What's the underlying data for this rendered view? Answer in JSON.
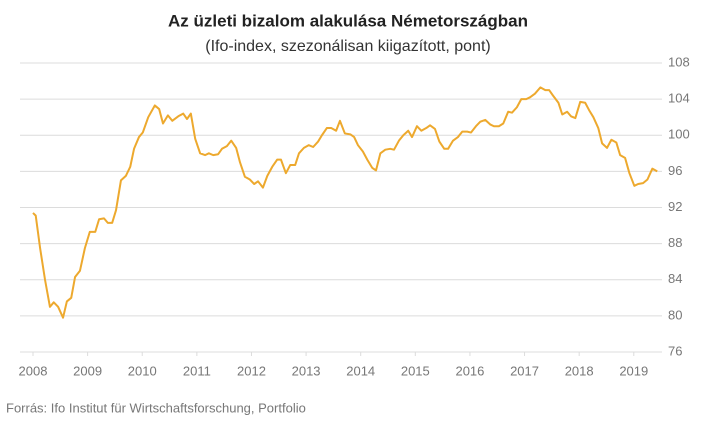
{
  "chart_data": {
    "type": "line",
    "title": "Az üzleti bizalom alakulása Németországban",
    "subtitle": "(Ifo-index, szezonálisan kiigazított, pont)",
    "source": "Forrás: Ifo Institut für Wirtschaftsforschung, Portfolio",
    "color": "#eda92e",
    "grid": true,
    "xlim": [
      2008,
      2019.48
    ],
    "xticks": [
      2008,
      2009,
      2010,
      2011,
      2012,
      2013,
      2014,
      2015,
      2016,
      2017,
      2018,
      2019
    ],
    "ylim": [
      76,
      108
    ],
    "yticks": [
      76,
      80,
      84,
      88,
      92,
      96,
      100,
      104,
      108
    ],
    "x": [
      2008.0,
      2008.05,
      2008.13,
      2008.22,
      2008.31,
      2008.38,
      2008.46,
      2008.55,
      2008.62,
      2008.7,
      2008.77,
      2008.86,
      2008.95,
      2009.04,
      2009.14,
      2009.21,
      2009.3,
      2009.37,
      2009.45,
      2009.52,
      2009.61,
      2009.7,
      2009.78,
      2009.85,
      2009.94,
      2010.01,
      2010.11,
      2010.23,
      2010.31,
      2010.38,
      2010.47,
      2010.55,
      2010.66,
      2010.75,
      2010.82,
      2010.89,
      2010.97,
      2011.06,
      2011.15,
      2011.22,
      2011.3,
      2011.39,
      2011.46,
      2011.55,
      2011.63,
      2011.72,
      2011.79,
      2011.88,
      2011.97,
      2012.05,
      2012.12,
      2012.21,
      2012.29,
      2012.38,
      2012.47,
      2012.54,
      2012.63,
      2012.71,
      2012.8,
      2012.87,
      2012.96,
      2013.05,
      2013.13,
      2013.22,
      2013.29,
      2013.38,
      2013.46,
      2013.55,
      2013.62,
      2013.71,
      2013.81,
      2013.88,
      2013.95,
      2014.04,
      2014.12,
      2014.21,
      2014.28,
      2014.36,
      2014.45,
      2014.54,
      2014.61,
      2014.7,
      2014.78,
      2014.87,
      2014.94,
      2015.03,
      2015.11,
      2015.2,
      2015.27,
      2015.36,
      2015.44,
      2015.53,
      2015.6,
      2015.69,
      2015.78,
      2015.86,
      2015.95,
      2016.02,
      2016.11,
      2016.19,
      2016.28,
      2016.37,
      2016.44,
      2016.53,
      2016.61,
      2016.7,
      2016.77,
      2016.86,
      2016.94,
      2017.03,
      2017.1,
      2017.19,
      2017.29,
      2017.38,
      2017.45,
      2017.52,
      2017.62,
      2017.69,
      2017.78,
      2017.85,
      2017.93,
      2018.02,
      2018.11,
      2018.18,
      2018.26,
      2018.35,
      2018.42,
      2018.51,
      2018.59,
      2018.68,
      2018.75,
      2018.84,
      2018.92,
      2019.01,
      2019.08,
      2019.17,
      2019.25,
      2019.34,
      2019.43
    ],
    "values": [
      91.4,
      91.1,
      87.5,
      84,
      81,
      81.5,
      81,
      79.8,
      81.6,
      82,
      84.3,
      85,
      87.5,
      89.3,
      89.3,
      90.7,
      90.8,
      90.3,
      90.3,
      91.7,
      95,
      95.5,
      96.5,
      98.5,
      99.8,
      100.3,
      102,
      103.3,
      102.9,
      101.3,
      102.2,
      101.6,
      102.1,
      102.4,
      101.8,
      102.4,
      99.6,
      98,
      97.8,
      98,
      97.8,
      97.9,
      98.5,
      98.8,
      99.4,
      98.6,
      97,
      95.4,
      95.1,
      94.6,
      94.9,
      94.2,
      95.5,
      96.5,
      97.3,
      97.3,
      95.8,
      96.7,
      96.7,
      98,
      98.6,
      98.9,
      98.7,
      99.3,
      100,
      100.8,
      100.8,
      100.5,
      101.6,
      100.2,
      100.1,
      99.8,
      98.9,
      98.2,
      97.3,
      96.4,
      96.1,
      98,
      98.4,
      98.5,
      98.4,
      99.4,
      100,
      100.5,
      99.8,
      101,
      100.5,
      100.8,
      101.1,
      100.7,
      99.3,
      98.5,
      98.5,
      99.4,
      99.8,
      100.4,
      100.4,
      100.3,
      101,
      101.5,
      101.7,
      101.2,
      101,
      101,
      101.3,
      102.6,
      102.5,
      103.1,
      104,
      104,
      104.2,
      104.6,
      105.3,
      105,
      105,
      104.4,
      103.6,
      102.3,
      102.6,
      102.1,
      101.9,
      103.7,
      103.6,
      102.8,
      102,
      100.8,
      99.1,
      98.6,
      99.5,
      99.2,
      97.8,
      97.5,
      95.8,
      94.4,
      94.6,
      94.7,
      95.1,
      96.3,
      96
    ]
  }
}
